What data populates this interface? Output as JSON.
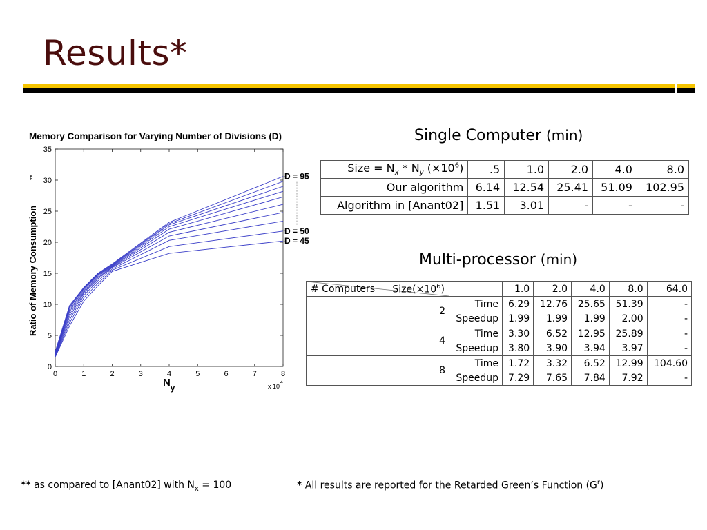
{
  "slide": {
    "title": "Results*"
  },
  "colors": {
    "title": "#4a0d0d",
    "bar_yellow": "#f5c400",
    "bar_black": "#000000",
    "line": "#3b3fc8"
  },
  "chart_data": {
    "type": "line",
    "title": "Memory Comparison for Varying Number of Divisions (D)",
    "xlabel": "N",
    "xlabel_sub": "y",
    "x_multiplier": "x 10",
    "x_multiplier_exp": "4",
    "ylabel": "Ratio of Memory Consumption",
    "ylabel_suffix": "**",
    "xlim": [
      0,
      8
    ],
    "ylim": [
      0,
      35
    ],
    "xticks": [
      "0",
      "1",
      "2",
      "3",
      "4",
      "5",
      "6",
      "7",
      "8"
    ],
    "yticks": [
      "0",
      "5",
      "10",
      "15",
      "20",
      "25",
      "30",
      "35"
    ],
    "grid": false,
    "annotations": [
      {
        "text": "D = 95",
        "y": 30.6
      },
      {
        "text": "D = 50",
        "y": 21.8
      },
      {
        "text": "D = 45",
        "y": 20.2
      }
    ],
    "x": [
      0,
      0.5,
      1,
      1.5,
      2,
      4,
      8
    ],
    "series": [
      {
        "values": [
          1.5,
          6.5,
          10.5,
          13.0,
          15.3,
          18.2,
          20.2
        ]
      },
      {
        "values": [
          1.6,
          7.0,
          11.0,
          13.4,
          15.5,
          19.3,
          21.8
        ]
      },
      {
        "values": [
          1.7,
          7.5,
          11.4,
          13.8,
          15.7,
          20.3,
          23.4
        ]
      },
      {
        "values": [
          1.8,
          8.0,
          11.7,
          14.1,
          15.9,
          21.0,
          24.8
        ]
      },
      {
        "values": [
          1.9,
          8.4,
          11.9,
          14.3,
          16.0,
          21.6,
          26.1
        ]
      },
      {
        "values": [
          2.0,
          8.8,
          12.1,
          14.5,
          16.1,
          22.1,
          27.3
        ]
      },
      {
        "values": [
          2.1,
          9.1,
          12.3,
          14.7,
          16.2,
          22.5,
          28.2
        ]
      },
      {
        "values": [
          2.2,
          9.4,
          12.5,
          14.8,
          16.3,
          22.8,
          29.0
        ]
      },
      {
        "values": [
          2.3,
          9.6,
          12.6,
          14.9,
          16.4,
          23.0,
          29.8
        ]
      },
      {
        "values": [
          2.4,
          9.8,
          12.7,
          15.0,
          16.5,
          23.2,
          30.6
        ]
      }
    ]
  },
  "single": {
    "title": "Single Computer",
    "unit": "(min)",
    "header": {
      "label": "Size = N",
      "nx": "x",
      "star": " * N",
      "ny": "y",
      "paren": " (×10",
      "exp": "6",
      "close": ")"
    },
    "sizes": [
      ".5",
      "1.0",
      "2.0",
      "4.0",
      "8.0"
    ],
    "rows": [
      {
        "label": "Our algorithm",
        "values": [
          "6.14",
          "12.54",
          "25.41",
          "51.09",
          "102.95"
        ]
      },
      {
        "label": "Algorithm in [Anant02]",
        "values": [
          "1.51",
          "3.01",
          "-",
          "-",
          "-"
        ]
      }
    ]
  },
  "multi": {
    "title": "Multi-processor",
    "unit": "(min)",
    "corner_top": "Size(×10",
    "corner_top_exp": "6",
    "corner_top_close": ")",
    "corner_bottom": "# Computers",
    "sizes": [
      "1.0",
      "2.0",
      "4.0",
      "8.0",
      "64.0"
    ],
    "groups": [
      {
        "computers": "2",
        "time_label": "Time",
        "time": [
          "6.29",
          "12.76",
          "25.65",
          "51.39",
          "-"
        ],
        "speedup_label": "Speedup",
        "speedup": [
          "1.99",
          "1.99",
          "1.99",
          "2.00",
          "-"
        ]
      },
      {
        "computers": "4",
        "time_label": "Time",
        "time": [
          "3.30",
          "6.52",
          "12.95",
          "25.89",
          "-"
        ],
        "speedup_label": "Speedup",
        "speedup": [
          "3.80",
          "3.90",
          "3.94",
          "3.97",
          "-"
        ]
      },
      {
        "computers": "8",
        "time_label": "Time",
        "time": [
          "1.72",
          "3.32",
          "6.52",
          "12.99",
          "104.60"
        ],
        "speedup_label": "Speedup",
        "speedup": [
          "7.29",
          "7.65",
          "7.84",
          "7.92",
          "-"
        ]
      }
    ]
  },
  "footnotes": {
    "left_mark": "**",
    "left_text": " as compared to [Anant02] with N",
    "left_sub": "x",
    "left_tail": " = 100",
    "right_mark": "*",
    "right_text": " All results are reported for the Retarded Green’s Function (G",
    "right_sup": "r",
    "right_tail": ")"
  }
}
